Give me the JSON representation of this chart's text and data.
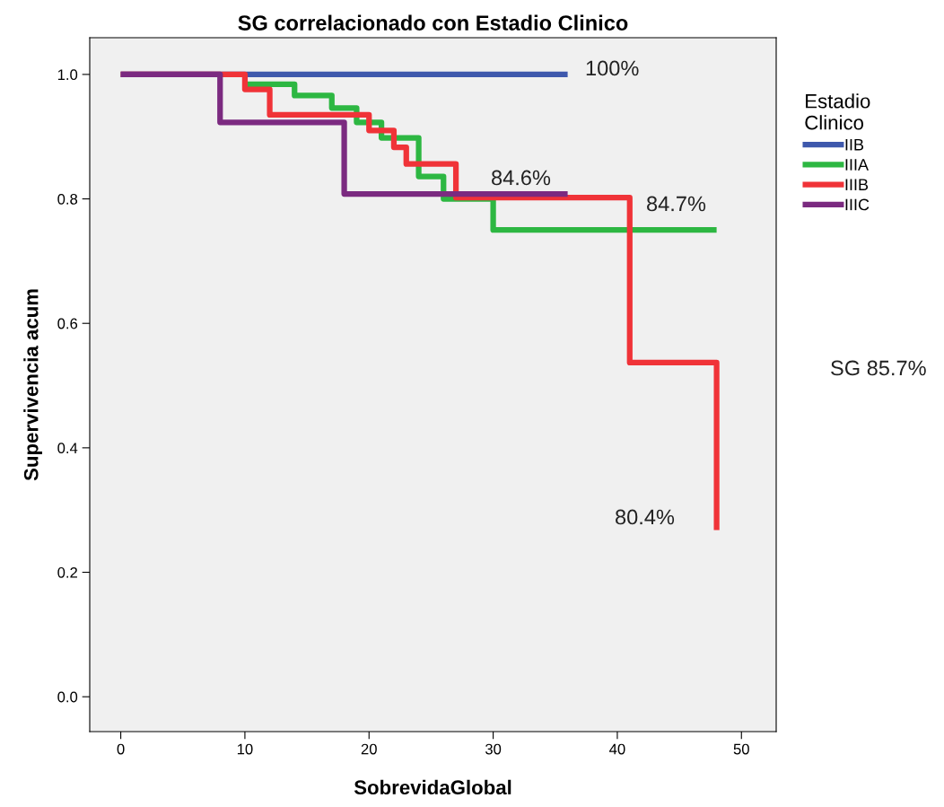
{
  "chart_data": {
    "type": "step",
    "title": "SG correlacionado con Estadio Clinico",
    "xlabel": "SobrevidaGlobal",
    "ylabel": "Supervivencia acum",
    "legend_title": "Estadio\nClinico",
    "legend": "right",
    "grid": false,
    "xlim": [
      -2.5,
      52.8
    ],
    "ylim": [
      -0.056,
      1.059
    ],
    "xticks": [
      0,
      10,
      20,
      30,
      40,
      50
    ],
    "yticks": [
      {
        "value": 0,
        "label": "0.0"
      },
      {
        "value": 0.2,
        "label": "0.2"
      },
      {
        "value": 0.4,
        "label": "0.4"
      },
      {
        "value": 0.6,
        "label": "0.6"
      },
      {
        "value": 0.8,
        "label": "0.8"
      },
      {
        "value": 1,
        "label": "1.0"
      }
    ],
    "series": [
      {
        "name": "IIB",
        "color": "#3e58ac",
        "x": [
          0,
          36
        ],
        "values": [
          1,
          1
        ]
      },
      {
        "name": "IIIA",
        "color": "#2db742",
        "x": [
          10,
          14,
          17,
          19,
          21,
          24,
          26,
          30,
          48
        ],
        "values": [
          0.984,
          0.966,
          0.946,
          0.923,
          0.898,
          0.836,
          0.8,
          0.75,
          0.75
        ]
      },
      {
        "name": "IIIB",
        "color": "#f03338",
        "x": [
          0,
          10,
          12,
          20,
          22,
          23,
          27,
          41,
          48
        ],
        "values": [
          1,
          0.976,
          0.935,
          0.91,
          0.883,
          0.856,
          0.802,
          0.537,
          0.268
        ]
      },
      {
        "name": "IIIC",
        "color": "#7b2a80",
        "x": [
          0,
          8,
          18,
          36
        ],
        "values": [
          1,
          0.923,
          0.808,
          0.808
        ]
      }
    ],
    "annotations": [
      "100%",
      "84.6%",
      "84.7%",
      "80.4%",
      "SG 85.7%"
    ]
  }
}
